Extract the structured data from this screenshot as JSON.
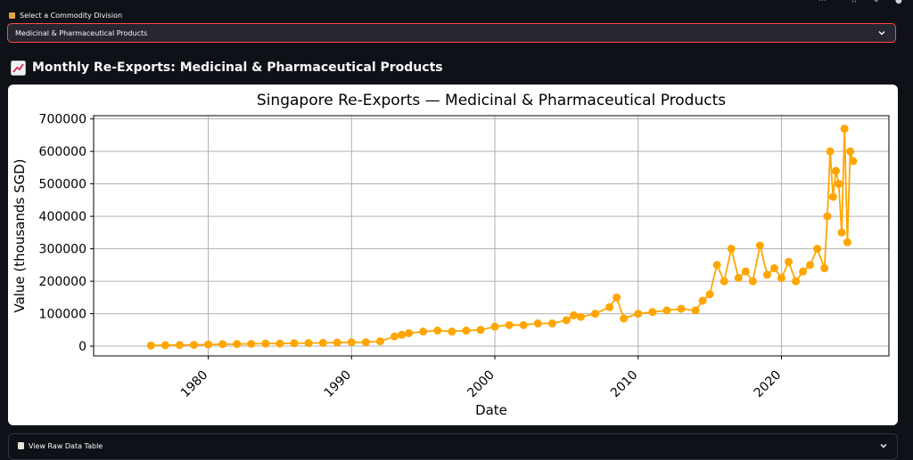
{
  "commodity_select": {
    "label": "Select a Commodity Division",
    "selected": "Medicinal & Pharmaceutical Products"
  },
  "section_header": "Monthly Re-Exports: Medicinal & Pharmaceutical Products",
  "expander_label": "View Raw Data Table",
  "colors": {
    "series": "#ffa500",
    "accent_border": "#ff4b4b",
    "background": "#0e1117"
  },
  "chart_data": {
    "type": "line",
    "title": "Singapore Re-Exports — Medicinal & Pharmaceutical Products",
    "xlabel": "Date",
    "ylabel": "Value (thousands SGD)",
    "x_ticks": [
      "1980",
      "1990",
      "2000",
      "2010",
      "2020"
    ],
    "y_ticks": [
      "0",
      "100000",
      "200000",
      "300000",
      "400000",
      "500000",
      "600000",
      "700000"
    ],
    "xlim": [
      1972,
      2027.5
    ],
    "ylim": [
      -30000,
      710000
    ],
    "grid": true,
    "markers": true,
    "series_color": "#ffa500",
    "series": [
      {
        "x": [
          1976,
          1977,
          1978,
          1979,
          1980,
          1981,
          1982,
          1983,
          1984,
          1985,
          1986,
          1987,
          1988,
          1989,
          1990,
          1991,
          1992,
          1993,
          1993.5,
          1994,
          1995,
          1996,
          1997,
          1998,
          1999,
          2000,
          2001,
          2002,
          2003,
          2004,
          2005,
          2005.5,
          2006,
          2007,
          2008,
          2008.5,
          2009,
          2010,
          2011,
          2012,
          2013,
          2014,
          2014.5,
          2015,
          2015.5,
          2016,
          2016.5,
          2017,
          2017.5,
          2018,
          2018.5,
          2019,
          2019.5,
          2020,
          2020.5,
          2021,
          2021.5,
          2022,
          2022.5,
          2023,
          2023.2,
          2023.4,
          2023.6,
          2023.8,
          2024,
          2024.2,
          2024.4,
          2024.6,
          2024.8,
          2025
        ],
        "y": [
          2000,
          3000,
          3500,
          4000,
          5000,
          6000,
          6500,
          7000,
          8000,
          8000,
          9000,
          9500,
          10000,
          11000,
          12000,
          12000,
          15000,
          30000,
          35000,
          40000,
          45000,
          48000,
          45000,
          48000,
          50000,
          60000,
          65000,
          65000,
          70000,
          70000,
          80000,
          95000,
          90000,
          100000,
          120000,
          150000,
          85000,
          100000,
          105000,
          110000,
          115000,
          110000,
          140000,
          160000,
          250000,
          200000,
          300000,
          210000,
          230000,
          200000,
          310000,
          220000,
          240000,
          210000,
          260000,
          200000,
          230000,
          250000,
          300000,
          240000,
          400000,
          600000,
          460000,
          540000,
          500000,
          350000,
          670000,
          320000,
          600000,
          570000
        ]
      }
    ]
  }
}
